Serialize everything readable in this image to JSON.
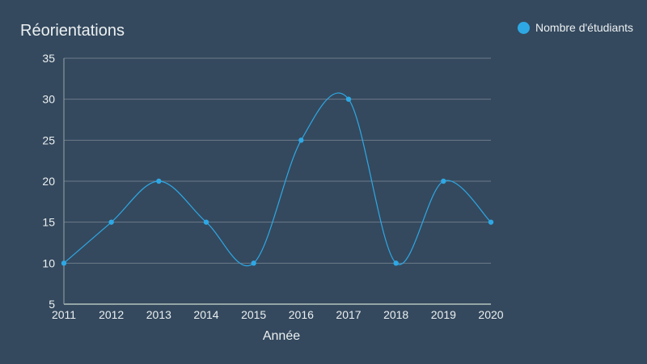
{
  "chart_data": {
    "type": "line",
    "title": "Réorientations",
    "xlabel": "Année",
    "ylabel": "",
    "categories": [
      "2011",
      "2012",
      "2013",
      "2014",
      "2015",
      "2016",
      "2017",
      "2018",
      "2019",
      "2020"
    ],
    "series": [
      {
        "name": "Nombre d'étudiants",
        "values": [
          10,
          15,
          20,
          15,
          10,
          25,
          30,
          10,
          20,
          15
        ],
        "color": "#2ea8e5"
      }
    ],
    "yticks": [
      "5",
      "10",
      "15",
      "20",
      "25",
      "30",
      "35"
    ],
    "ylim": [
      5,
      35
    ],
    "grid": true,
    "smooth": true,
    "legend_position": "top-right",
    "colors": {
      "background": "#34495e",
      "grid": "#6c7a89",
      "axis": "#95a5a6",
      "text": "#ecf0f1"
    }
  }
}
